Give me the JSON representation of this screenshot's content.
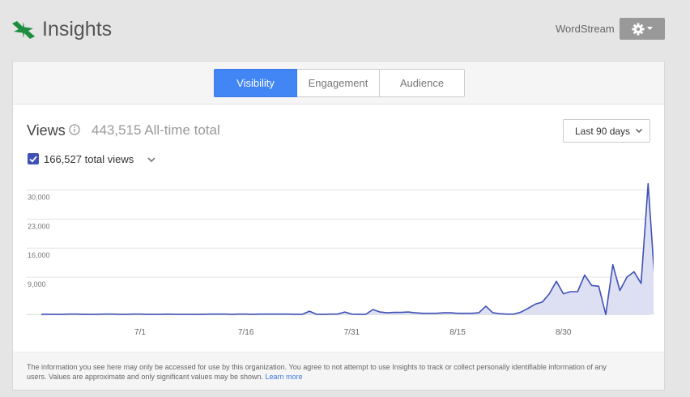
{
  "header": {
    "app_title": "Insights",
    "account_name": "WordStream",
    "icons": {
      "logo": "insights-arrows-logo-icon",
      "settings": "gear-icon"
    },
    "logo_color": "#1e8e3e"
  },
  "tabs": [
    {
      "label": "Visibility",
      "active": true
    },
    {
      "label": "Engagement",
      "active": false
    },
    {
      "label": "Audience",
      "active": false
    }
  ],
  "metric": {
    "title": "Views",
    "alltime_total": "443,515 All-time total",
    "range_selected": "Last 90 days"
  },
  "series_toggle": {
    "label": "166,527 total views",
    "checked": true
  },
  "colors": {
    "accent": "#4285f4",
    "series_line": "#3f51b5",
    "series_fill": "#dde0f3",
    "checkbox": "#3f51b5"
  },
  "chart_data": {
    "type": "area",
    "title": "",
    "xlabel": "",
    "ylabel": "",
    "ylim": [
      -2500,
      33600
    ],
    "yticks": [
      "30,000",
      "23,000",
      "16,000",
      "9,000"
    ],
    "ytick_values": [
      30000,
      23000,
      16000,
      9000
    ],
    "xticks": [
      "7/1",
      "7/16",
      "7/31",
      "8/15",
      "8/30"
    ],
    "xtick_days": [
      14,
      29,
      44,
      59,
      74
    ],
    "grid": true,
    "series": [
      {
        "name": "total views",
        "values": [
          50,
          50,
          50,
          50,
          100,
          100,
          50,
          50,
          50,
          100,
          100,
          50,
          50,
          100,
          100,
          50,
          50,
          50,
          100,
          50,
          50,
          50,
          50,
          50,
          100,
          100,
          100,
          50,
          100,
          100,
          50,
          100,
          100,
          100,
          100,
          100,
          50,
          50,
          800,
          50,
          50,
          100,
          100,
          600,
          100,
          50,
          50,
          1200,
          600,
          400,
          500,
          500,
          600,
          400,
          300,
          300,
          300,
          400,
          400,
          300,
          300,
          300,
          400,
          2000,
          400,
          200,
          100,
          100,
          600,
          1500,
          2500,
          3000,
          5000,
          8000,
          5000,
          5500,
          5500,
          9500,
          7000,
          6800,
          0,
          12000,
          5800,
          9000,
          10300,
          7500,
          31500,
          6500
        ]
      }
    ]
  },
  "footer": {
    "disclaimer": "The information you see here may only be accessed for use by this organization. You agree to not attempt to use Insights to track or collect personally identifiable information of any users. Values are approximate and only significant values may be shown.",
    "link_label": "Learn more"
  }
}
